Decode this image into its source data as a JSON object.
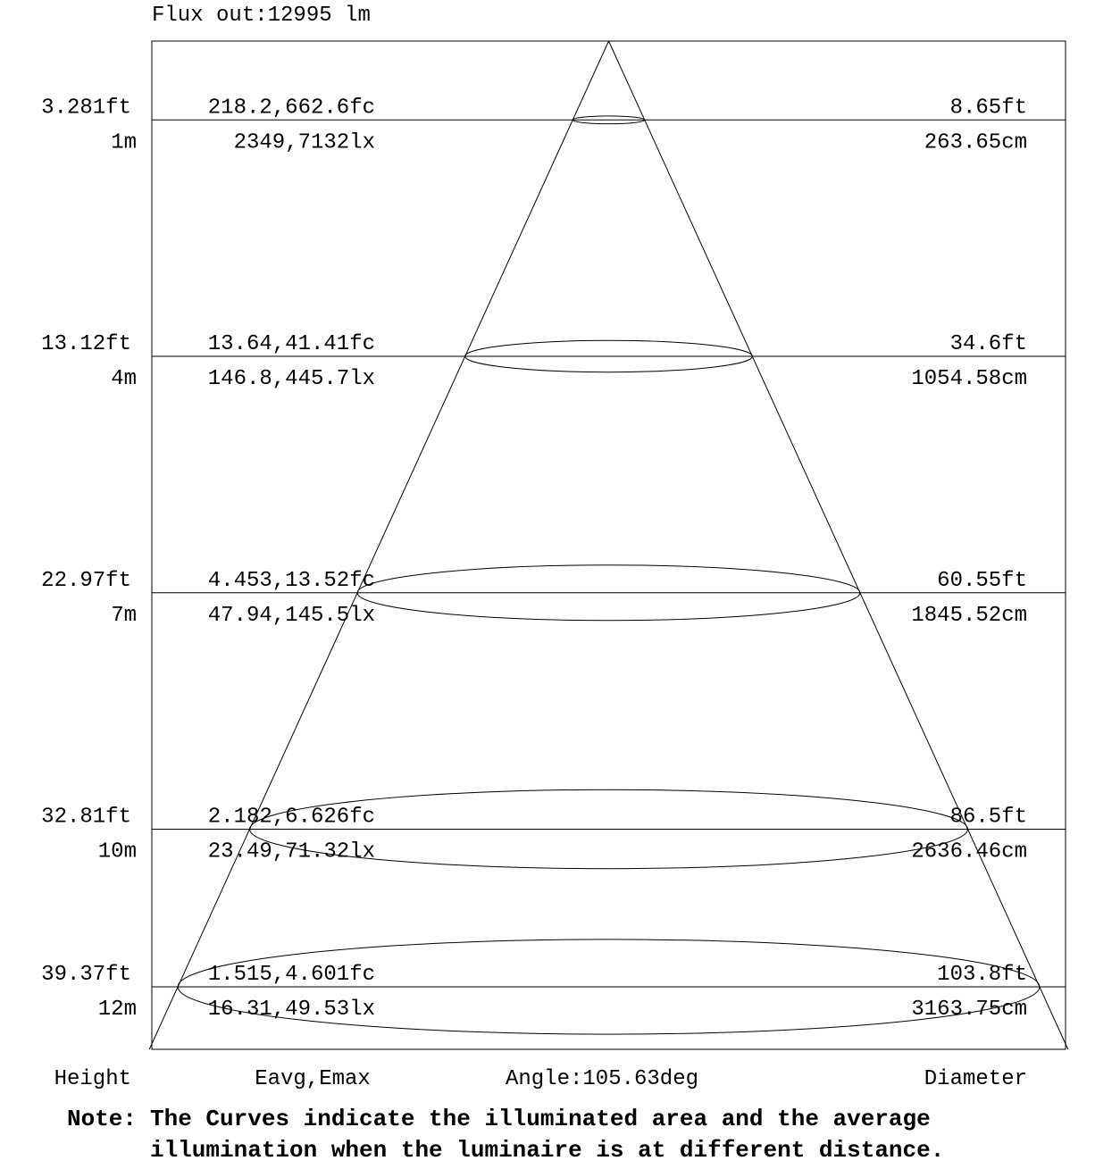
{
  "flux_text": "Flux out:12995 lm",
  "chart_data": {
    "type": "beam-angle-diagram",
    "beam_angle_label": "Angle:105.63deg",
    "column_labels": {
      "height": "Height",
      "illuminance": "Eavg,Emax",
      "angle": "Angle:105.63deg",
      "diameter": "Diameter"
    },
    "levels": [
      {
        "height_m": 1,
        "height_ft": "3.281ft",
        "height_m_label": "1m",
        "fc": "218.2,662.6fc",
        "lx": "2349,7132lx",
        "diameter_ft": "8.65ft",
        "diameter_cm": "263.65cm"
      },
      {
        "height_m": 4,
        "height_ft": "13.12ft",
        "height_m_label": "4m",
        "fc": "13.64,41.41fc",
        "lx": "146.8,445.7lx",
        "diameter_ft": "34.6ft",
        "diameter_cm": "1054.58cm"
      },
      {
        "height_m": 7,
        "height_ft": "22.97ft",
        "height_m_label": "7m",
        "fc": "4.453,13.52fc",
        "lx": "47.94,145.5lx",
        "diameter_ft": "60.55ft",
        "diameter_cm": "1845.52cm"
      },
      {
        "height_m": 10,
        "height_ft": "32.81ft",
        "height_m_label": "10m",
        "fc": "2.182,6.626fc",
        "lx": "23.49,71.32lx",
        "diameter_ft": "86.5ft",
        "diameter_cm": "2636.46cm"
      },
      {
        "height_m": 12,
        "height_ft": "39.37ft",
        "height_m_label": "12m",
        "fc": "1.515,4.601fc",
        "lx": "16.31,49.53lx",
        "diameter_ft": "103.8ft",
        "diameter_cm": "3163.75cm"
      }
    ],
    "ylim_m": [
      0,
      12.8
    ]
  },
  "note": {
    "label": "Note:",
    "line1": "The Curves indicate the illuminated area and the average",
    "line2": "illumination when the luminaire is at different distance."
  }
}
